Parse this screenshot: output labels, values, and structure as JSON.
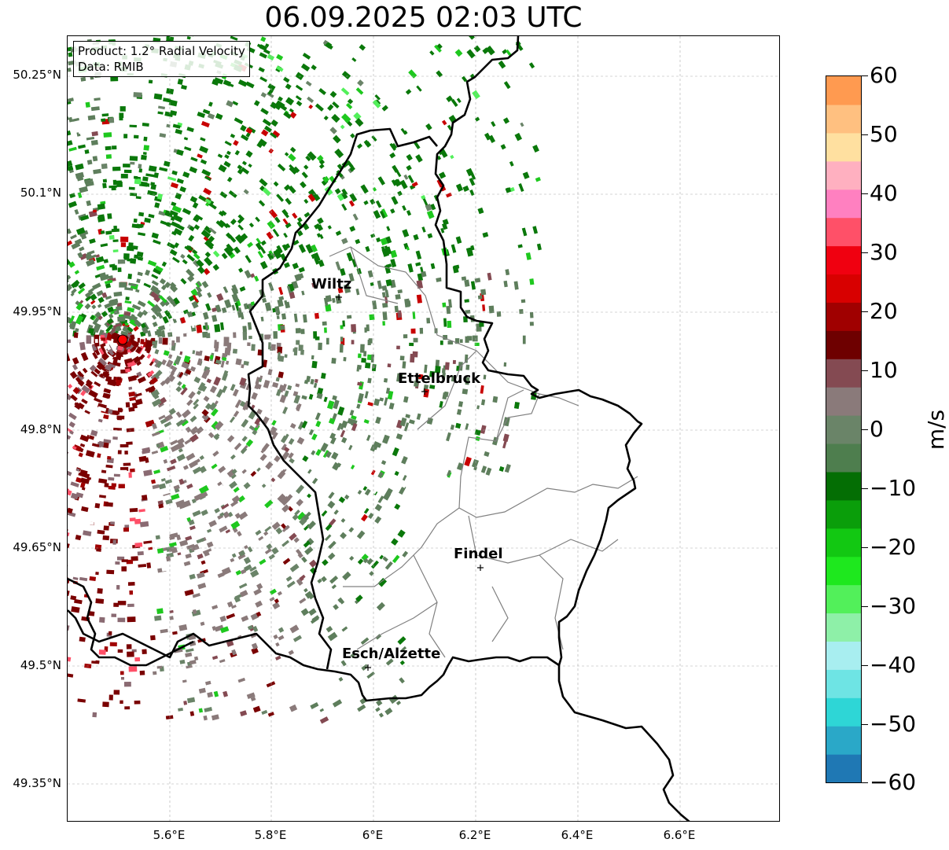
{
  "title": "06.09.2025 02:03 UTC",
  "info": {
    "product": "Product: 1.2° Radial Velocity",
    "data": "Data: RMIB"
  },
  "map": {
    "lat_ticks": [
      "50.25°N",
      "50.1°N",
      "49.95°N",
      "49.8°N",
      "49.65°N",
      "49.5°N",
      "49.35°N"
    ],
    "lon_ticks": [
      "5.6°E",
      "5.8°E",
      "6°E",
      "6.2°E",
      "6.4°E",
      "6.6°E"
    ],
    "cities": [
      {
        "name": "Wiltz"
      },
      {
        "name": "Ettelbruck"
      },
      {
        "name": "Findel"
      },
      {
        "name": "Esch/Alzette"
      }
    ]
  },
  "colorbar": {
    "unit": "m/s",
    "ticks": [
      "60",
      "50",
      "40",
      "30",
      "20",
      "10",
      "0",
      "−10",
      "−20",
      "−30",
      "−40",
      "−50",
      "−60"
    ],
    "range": [
      -60,
      60
    ],
    "colors": [
      "#1f78b4",
      "#2aa8c8",
      "#2ed6d6",
      "#6ee4e4",
      "#a8eef0",
      "#8ef0a8",
      "#52f05a",
      "#1ee81e",
      "#12c812",
      "#0a9e0a",
      "#046e04",
      "#4e7e4e",
      "#6a8468",
      "#8a7a7a",
      "#844a52",
      "#6e0000",
      "#a00000",
      "#d80000",
      "#f00010",
      "#ff5068",
      "#ff80c0",
      "#ffb0c0",
      "#ffe0a0",
      "#ffc080",
      "#ff9a50"
    ]
  }
}
